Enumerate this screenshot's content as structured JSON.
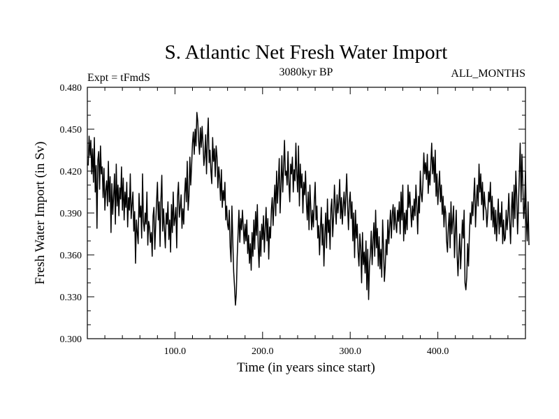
{
  "chart_data": {
    "type": "line",
    "title": "S. Atlantic Net Fresh Water Import",
    "subtitle_left": "Expt = tFmdS",
    "subtitle_center": "3080kyr BP",
    "subtitle_right": "ALL_MONTHS",
    "xlabel": "Time (in years since start)",
    "ylabel": "Fresh Water Import (in Sv)",
    "xlim": [
      0,
      500
    ],
    "ylim": [
      0.3,
      0.48
    ],
    "x_ticks": [
      100,
      200,
      300,
      400
    ],
    "x_tick_labels": [
      "100.0",
      "200.0",
      "300.0",
      "400.0"
    ],
    "y_ticks": [
      0.3,
      0.33,
      0.36,
      0.39,
      0.42,
      0.45,
      0.48
    ],
    "y_tick_labels": [
      "0.300",
      "0.330",
      "0.360",
      "0.390",
      "0.420",
      "0.450",
      "0.480"
    ],
    "x_minor_step": 20,
    "y_minor_step": 0.01,
    "grid": false,
    "series": [
      {
        "name": "Fresh Water Import",
        "x_start": 1,
        "x_step": 1,
        "values": [
          0.424,
          0.445,
          0.431,
          0.442,
          0.418,
          0.436,
          0.412,
          0.444,
          0.405,
          0.424,
          0.379,
          0.428,
          0.434,
          0.407,
          0.438,
          0.418,
          0.423,
          0.401,
          0.422,
          0.392,
          0.406,
          0.413,
          0.395,
          0.427,
          0.398,
          0.416,
          0.376,
          0.411,
          0.389,
          0.402,
          0.418,
          0.382,
          0.425,
          0.395,
          0.41,
          0.388,
          0.408,
          0.4,
          0.423,
          0.392,
          0.415,
          0.385,
          0.405,
          0.394,
          0.412,
          0.38,
          0.401,
          0.392,
          0.418,
          0.386,
          0.396,
          0.405,
          0.377,
          0.391,
          0.354,
          0.385,
          0.376,
          0.368,
          0.404,
          0.387,
          0.395,
          0.372,
          0.418,
          0.384,
          0.377,
          0.39,
          0.382,
          0.405,
          0.367,
          0.384,
          0.38,
          0.369,
          0.376,
          0.359,
          0.388,
          0.394,
          0.364,
          0.381,
          0.398,
          0.412,
          0.385,
          0.398,
          0.366,
          0.4,
          0.417,
          0.377,
          0.393,
          0.378,
          0.365,
          0.39,
          0.382,
          0.398,
          0.371,
          0.385,
          0.362,
          0.396,
          0.376,
          0.405,
          0.381,
          0.386,
          0.394,
          0.365,
          0.402,
          0.412,
          0.387,
          0.394,
          0.403,
          0.379,
          0.393,
          0.382,
          0.403,
          0.415,
          0.398,
          0.427,
          0.392,
          0.402,
          0.43,
          0.41,
          0.424,
          0.44,
          0.448,
          0.432,
          0.45,
          0.438,
          0.462,
          0.456,
          0.442,
          0.432,
          0.451,
          0.437,
          0.452,
          0.44,
          0.424,
          0.431,
          0.446,
          0.418,
          0.443,
          0.458,
          0.426,
          0.435,
          0.42,
          0.411,
          0.444,
          0.427,
          0.436,
          0.416,
          0.438,
          0.43,
          0.408,
          0.423,
          0.415,
          0.399,
          0.421,
          0.394,
          0.406,
          0.399,
          0.412,
          0.385,
          0.395,
          0.382,
          0.378,
          0.392,
          0.366,
          0.355,
          0.395,
          0.37,
          0.348,
          0.337,
          0.324,
          0.332,
          0.358,
          0.375,
          0.392,
          0.369,
          0.386,
          0.378,
          0.392,
          0.38,
          0.368,
          0.382,
          0.37,
          0.385,
          0.361,
          0.374,
          0.354,
          0.368,
          0.349,
          0.376,
          0.359,
          0.385,
          0.364,
          0.391,
          0.374,
          0.396,
          0.366,
          0.351,
          0.377,
          0.359,
          0.382,
          0.371,
          0.388,
          0.362,
          0.379,
          0.394,
          0.37,
          0.386,
          0.357,
          0.38,
          0.372,
          0.392,
          0.401,
          0.381,
          0.397,
          0.41,
          0.388,
          0.42,
          0.397,
          0.412,
          0.429,
          0.39,
          0.41,
          0.431,
          0.405,
          0.423,
          0.442,
          0.417,
          0.42,
          0.41,
          0.434,
          0.412,
          0.398,
          0.425,
          0.418,
          0.43,
          0.405,
          0.421,
          0.413,
          0.44,
          0.418,
          0.405,
          0.438,
          0.395,
          0.425,
          0.408,
          0.418,
          0.39,
          0.412,
          0.403,
          0.42,
          0.398,
          0.385,
          0.405,
          0.378,
          0.41,
          0.394,
          0.378,
          0.392,
          0.38,
          0.398,
          0.412,
          0.385,
          0.395,
          0.372,
          0.381,
          0.36,
          0.378,
          0.394,
          0.367,
          0.382,
          0.352,
          0.374,
          0.39,
          0.365,
          0.4,
          0.376,
          0.385,
          0.364,
          0.393,
          0.4,
          0.373,
          0.387,
          0.41,
          0.394,
          0.382,
          0.403,
          0.39,
          0.398,
          0.414,
          0.386,
          0.401,
          0.382,
          0.395,
          0.405,
          0.388,
          0.402,
          0.418,
          0.395,
          0.378,
          0.398,
          0.405,
          0.386,
          0.398,
          0.37,
          0.39,
          0.358,
          0.392,
          0.372,
          0.382,
          0.362,
          0.352,
          0.375,
          0.365,
          0.34,
          0.376,
          0.353,
          0.362,
          0.347,
          0.37,
          0.335,
          0.364,
          0.328,
          0.352,
          0.361,
          0.377,
          0.353,
          0.369,
          0.383,
          0.359,
          0.392,
          0.365,
          0.379,
          0.352,
          0.373,
          0.35,
          0.364,
          0.344,
          0.385,
          0.366,
          0.341,
          0.352,
          0.371,
          0.36,
          0.385,
          0.368,
          0.38,
          0.392,
          0.372,
          0.389,
          0.396,
          0.378,
          0.394,
          0.382,
          0.376,
          0.392,
          0.384,
          0.398,
          0.375,
          0.405,
          0.385,
          0.41,
          0.37,
          0.39,
          0.375,
          0.392,
          0.378,
          0.41,
          0.394,
          0.405,
          0.392,
          0.38,
          0.395,
          0.385,
          0.4,
          0.388,
          0.41,
          0.395,
          0.375,
          0.402,
          0.39,
          0.42,
          0.404,
          0.398,
          0.412,
          0.433,
          0.418,
          0.426,
          0.414,
          0.432,
          0.404,
          0.42,
          0.41,
          0.425,
          0.44,
          0.418,
          0.43,
          0.412,
          0.435,
          0.402,
          0.418,
          0.396,
          0.408,
          0.42,
          0.398,
          0.41,
          0.389,
          0.402,
          0.38,
          0.395,
          0.39,
          0.37,
          0.362,
          0.38,
          0.39,
          0.365,
          0.398,
          0.375,
          0.385,
          0.395,
          0.358,
          0.376,
          0.392,
          0.36,
          0.345,
          0.362,
          0.375,
          0.35,
          0.366,
          0.385,
          0.372,
          0.392,
          0.34,
          0.335,
          0.344,
          0.368,
          0.352,
          0.375,
          0.39,
          0.382,
          0.398,
          0.388,
          0.402,
          0.415,
          0.38,
          0.398,
          0.41,
          0.395,
          0.425,
          0.405,
          0.418,
          0.396,
          0.412,
          0.385,
          0.405,
          0.395,
          0.392,
          0.38,
          0.39,
          0.405,
          0.398,
          0.412,
          0.385,
          0.402,
          0.38,
          0.394,
          0.375,
          0.392,
          0.37,
          0.385,
          0.4,
          0.375,
          0.39,
          0.38,
          0.398,
          0.368,
          0.385,
          0.37,
          0.372,
          0.392,
          0.378,
          0.388,
          0.404,
          0.384,
          0.368,
          0.392,
          0.405,
          0.38,
          0.41,
          0.386,
          0.42,
          0.402,
          0.375,
          0.395,
          0.418,
          0.44,
          0.398,
          0.432,
          0.41,
          0.386,
          0.395,
          0.42,
          0.385,
          0.37,
          0.398,
          0.367
        ]
      }
    ]
  }
}
